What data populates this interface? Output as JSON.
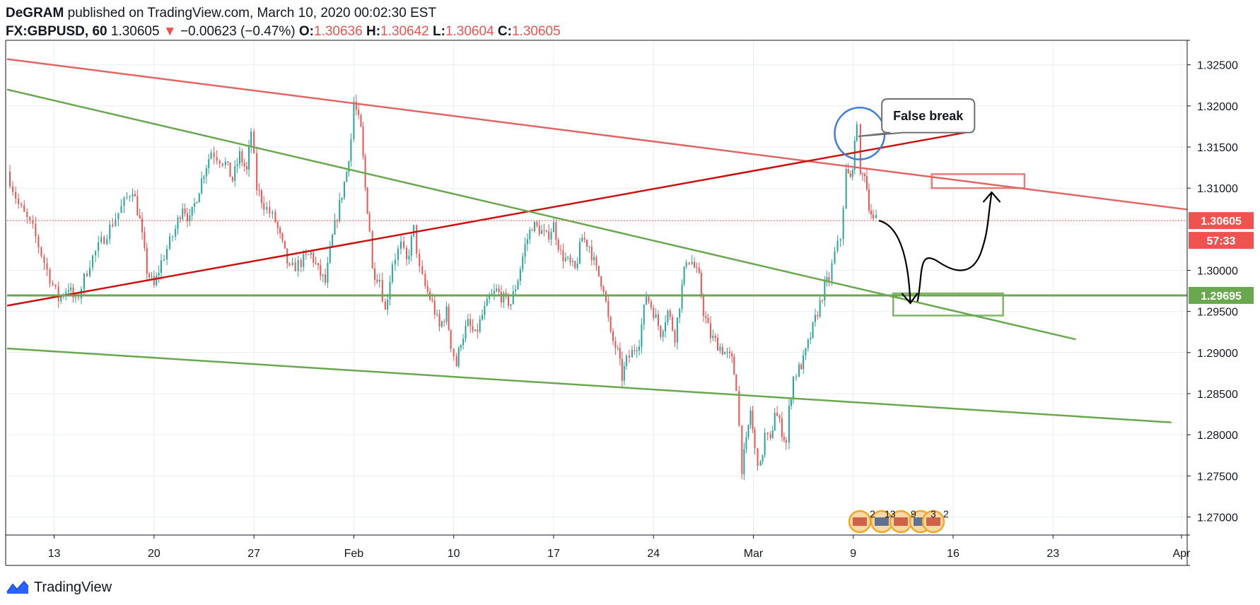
{
  "header": {
    "publisher": "DeGRAM",
    "published_text": "published on TradingView.com, March 10, 2020 00:02:30 EST",
    "symbol": "FX:GBPUSD, 60",
    "last": "1.30605",
    "change_arrow": "▼",
    "change": "−0.00623 (−0.47%)",
    "o_label": "O:",
    "o_value": "1.30636",
    "h_label": "H:",
    "h_value": "1.30642",
    "l_label": "L:",
    "l_value": "1.30604",
    "c_label": "C:",
    "c_value": "1.30605"
  },
  "footer": {
    "brand": "TradingView",
    "logo_icon": "tradingview-logo-icon"
  },
  "colors": {
    "up": "#26a69a",
    "down": "#ef5350",
    "grid": "#e9eef2",
    "green_line": "#6aa84f",
    "red_line": "#cc1111",
    "light_red_line": "#e06666",
    "ellipse": "#3b7dd8",
    "axis": "#131722"
  },
  "chart_data": {
    "type": "candlestick",
    "timeframe": "60",
    "x_ticks": [
      {
        "label": "13",
        "x": 12.5
      },
      {
        "label": "20",
        "x": 19.5
      },
      {
        "label": "27",
        "x": 26.5
      },
      {
        "label": "Feb",
        "x": 33.5
      },
      {
        "label": "10",
        "x": 40.5
      },
      {
        "label": "17",
        "x": 47.5
      },
      {
        "label": "24",
        "x": 54.5
      },
      {
        "label": "Mar",
        "x": 61.5
      },
      {
        "label": "9",
        "x": 68.5
      },
      {
        "label": "16",
        "x": 75.5
      },
      {
        "label": "23",
        "x": 82.5
      },
      {
        "label": "Apr",
        "x": 91.5
      }
    ],
    "y_ticks": [
      "1.32500",
      "1.32000",
      "1.31500",
      "1.31000",
      "1.30000",
      "1.29500",
      "1.29000",
      "1.28500",
      "1.28000",
      "1.27500",
      "1.27000"
    ],
    "xlim": [
      9.2,
      91.9
    ],
    "ylim": [
      1.2678,
      1.3279
    ],
    "price_path": [
      [
        9.2,
        1.312
      ],
      [
        10.0,
        1.308
      ],
      [
        11.0,
        1.305
      ],
      [
        12.0,
        1.3
      ],
      [
        12.8,
        1.2965
      ],
      [
        13.5,
        1.298
      ],
      [
        14.0,
        1.296
      ],
      [
        15.0,
        1.301
      ],
      [
        16.0,
        1.304
      ],
      [
        17.0,
        1.307
      ],
      [
        18.0,
        1.31
      ],
      [
        18.5,
        1.306
      ],
      [
        19.0,
        1.3
      ],
      [
        19.5,
        1.298
      ],
      [
        20.0,
        1.301
      ],
      [
        21.0,
        1.305
      ],
      [
        21.5,
        1.308
      ],
      [
        22.0,
        1.306
      ],
      [
        22.5,
        1.309
      ],
      [
        23.0,
        1.312
      ],
      [
        23.5,
        1.3145
      ],
      [
        24.5,
        1.313
      ],
      [
        25.0,
        1.311
      ],
      [
        25.5,
        1.314
      ],
      [
        26.0,
        1.312
      ],
      [
        26.3,
        1.317
      ],
      [
        26.7,
        1.31
      ],
      [
        27.2,
        1.308
      ],
      [
        28.0,
        1.306
      ],
      [
        28.5,
        1.303
      ],
      [
        29.0,
        1.3
      ],
      [
        29.8,
        1.301
      ],
      [
        30.5,
        1.302
      ],
      [
        31.0,
        1.3
      ],
      [
        31.5,
        1.2985
      ],
      [
        32.0,
        1.304
      ],
      [
        32.5,
        1.308
      ],
      [
        33.0,
        1.312
      ],
      [
        33.3,
        1.316
      ],
      [
        33.5,
        1.3205
      ],
      [
        34.0,
        1.317
      ],
      [
        34.3,
        1.31
      ],
      [
        34.6,
        1.305
      ],
      [
        34.8,
        1.3
      ],
      [
        35.3,
        1.299
      ],
      [
        35.7,
        1.295
      ],
      [
        36.2,
        1.301
      ],
      [
        36.8,
        1.303
      ],
      [
        37.2,
        1.301
      ],
      [
        37.7,
        1.305
      ],
      [
        38.1,
        1.3
      ],
      [
        38.5,
        1.298
      ],
      [
        39.0,
        1.296
      ],
      [
        39.5,
        1.293
      ],
      [
        40.0,
        1.295
      ],
      [
        40.3,
        1.291
      ],
      [
        40.7,
        1.2885
      ],
      [
        41.0,
        1.2915
      ],
      [
        41.5,
        1.2935
      ],
      [
        42.0,
        1.292
      ],
      [
        42.5,
        1.2945
      ],
      [
        43.0,
        1.2965
      ],
      [
        43.5,
        1.2975
      ],
      [
        44.0,
        1.2965
      ],
      [
        44.5,
        1.296
      ],
      [
        45.0,
        1.299
      ],
      [
        45.5,
        1.303
      ],
      [
        46.0,
        1.3055
      ],
      [
        46.5,
        1.305
      ],
      [
        47.0,
        1.304
      ],
      [
        47.5,
        1.3055
      ],
      [
        48.0,
        1.302
      ],
      [
        48.5,
        1.301
      ],
      [
        49.0,
        1.3
      ],
      [
        49.5,
        1.304
      ],
      [
        50.0,
        1.303
      ],
      [
        50.5,
        1.3
      ],
      [
        51.0,
        1.298
      ],
      [
        51.5,
        1.292
      ],
      [
        52.0,
        1.29
      ],
      [
        52.3,
        1.287
      ],
      [
        52.6,
        1.289
      ],
      [
        53.0,
        1.29
      ],
      [
        53.5,
        1.2915
      ],
      [
        54.0,
        1.297
      ],
      [
        54.5,
        1.295
      ],
      [
        55.0,
        1.2925
      ],
      [
        55.5,
        1.295
      ],
      [
        56.0,
        1.292
      ],
      [
        56.5,
        1.298
      ],
      [
        56.8,
        1.3015
      ],
      [
        57.2,
        1.301
      ],
      [
        57.7,
        1.299
      ],
      [
        58.0,
        1.295
      ],
      [
        58.5,
        1.292
      ],
      [
        59.0,
        1.291
      ],
      [
        59.5,
        1.29
      ],
      [
        60.0,
        1.289
      ],
      [
        60.3,
        1.286
      ],
      [
        60.7,
        1.276
      ],
      [
        61.0,
        1.279
      ],
      [
        61.3,
        1.283
      ],
      [
        61.6,
        1.278
      ],
      [
        62.0,
        1.276
      ],
      [
        62.3,
        1.28
      ],
      [
        62.7,
        1.279
      ],
      [
        63.0,
        1.283
      ],
      [
        63.5,
        1.2805
      ],
      [
        63.8,
        1.279
      ],
      [
        64.0,
        1.283
      ],
      [
        64.3,
        1.287
      ],
      [
        64.7,
        1.288
      ],
      [
        65.0,
        1.289
      ],
      [
        65.5,
        1.292
      ],
      [
        66.0,
        1.295
      ],
      [
        66.5,
        1.298
      ],
      [
        66.8,
        1.299
      ],
      [
        67.2,
        1.302
      ],
      [
        67.6,
        1.304
      ],
      [
        68.0,
        1.312
      ],
      [
        68.3,
        1.311
      ],
      [
        68.6,
        1.315
      ],
      [
        68.75,
        1.3185
      ],
      [
        69.0,
        1.311
      ],
      [
        69.3,
        1.312
      ],
      [
        69.6,
        1.308
      ],
      [
        69.9,
        1.306
      ],
      [
        70.1,
        1.3061
      ]
    ],
    "lines": [
      {
        "kind": "resistance",
        "color": "light_red_line",
        "from": [
          9.2,
          1.3257
        ],
        "to": [
          91.9,
          1.3074
        ]
      },
      {
        "kind": "rising-support",
        "color": "red_line",
        "from": [
          9.2,
          1.2957
        ],
        "to": [
          76.8,
          1.3169
        ]
      },
      {
        "kind": "descending",
        "color": "green_line",
        "from": [
          9.2,
          1.322
        ],
        "to": [
          84.1,
          1.2916
        ]
      },
      {
        "kind": "lower-channel",
        "color": "green_line",
        "from": [
          9.2,
          1.2905
        ],
        "to": [
          90.8,
          1.2815
        ]
      },
      {
        "kind": "horizontal-support",
        "color": "green_line",
        "price": 1.29695
      }
    ],
    "zones": [
      {
        "name": "support-zone",
        "x": [
          71.3,
          79.0
        ],
        "y": [
          1.2945,
          1.2972
        ],
        "color": "green_line"
      },
      {
        "name": "target-zone",
        "x": [
          74.0,
          80.5
        ],
        "y": [
          1.31,
          1.3117
        ],
        "color": "light_red_line"
      }
    ],
    "ellipse": {
      "x": 68.95,
      "y": 1.31665,
      "rx": 1.75,
      "ry": 0.00315
    },
    "callout": {
      "text": "False break",
      "box_x": [
        70.5,
        77.0
      ],
      "box_y": [
        1.31675,
        1.32085
      ],
      "pointer": [
        68.85,
        1.3163
      ]
    },
    "projection": {
      "down": [
        [
          70.3,
          1.30605
        ],
        [
          72.5,
          1.296
        ]
      ],
      "up": [
        [
          73.0,
          1.2962
        ],
        [
          74.5,
          1.301
        ],
        [
          76.5,
          1.2998
        ],
        [
          78.2,
          1.3095
        ]
      ]
    },
    "price_labels": [
      {
        "text": "1.30605",
        "price": 1.30605,
        "color": "down"
      },
      {
        "text": "57:33",
        "price": 1.30605,
        "color": "down",
        "offset": "below"
      },
      {
        "text": "1.29695",
        "price": 1.29695,
        "color": "green_line"
      }
    ],
    "event_icons": [
      "us-flag-icon",
      "uk-flag-icon",
      "us-flag-icon",
      "uk-flag-icon",
      "us-flag-icon"
    ],
    "event_counts": [
      "2",
      "13",
      "9",
      "3",
      "2"
    ]
  }
}
